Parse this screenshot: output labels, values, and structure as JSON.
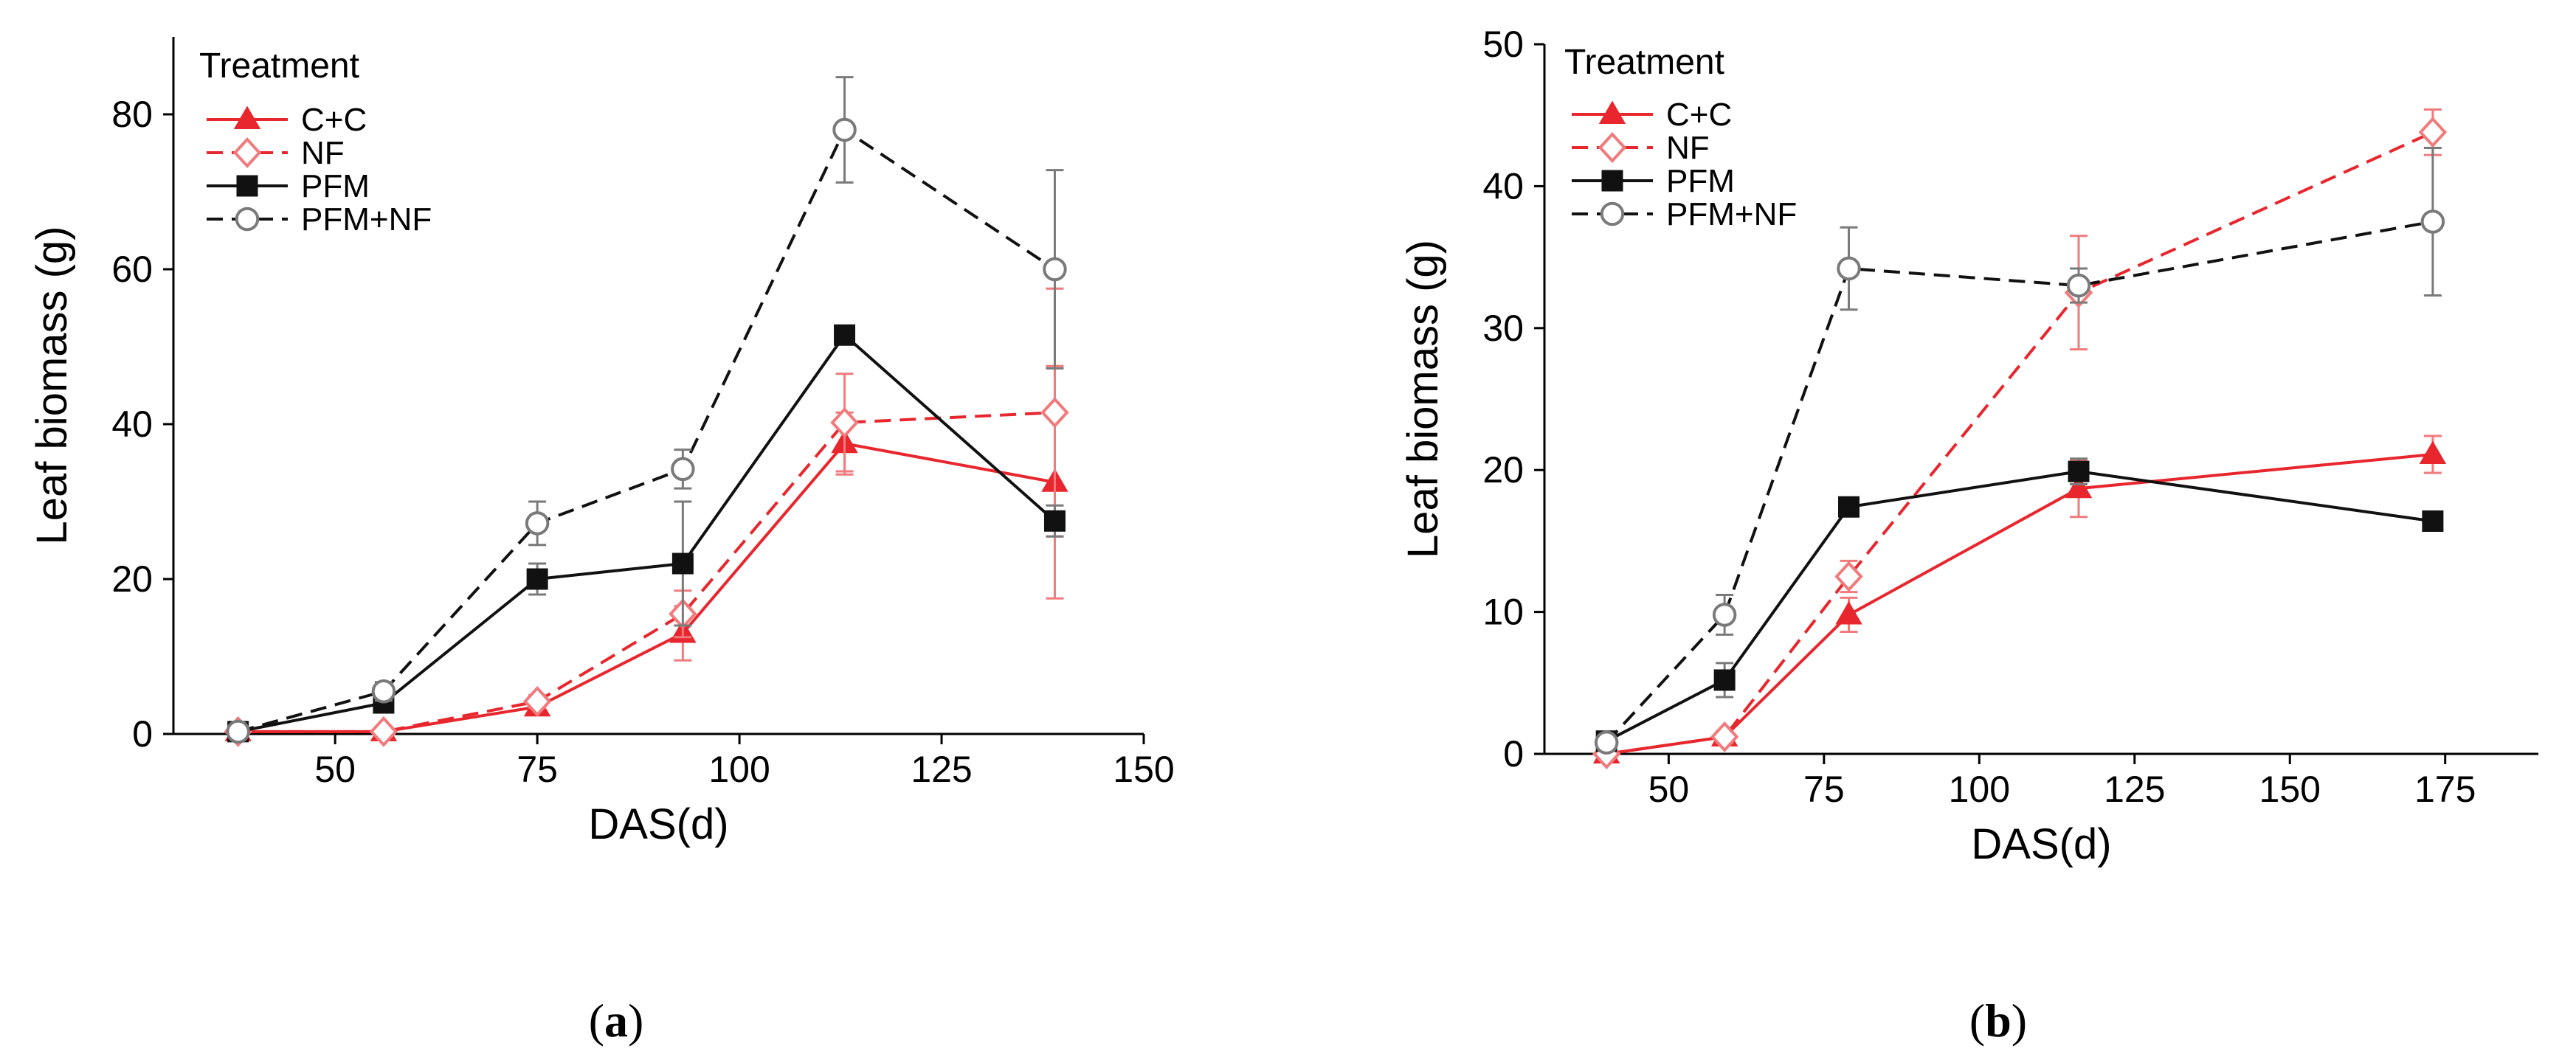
{
  "figure": {
    "panel_labels": [
      {
        "open": "(",
        "letter": "a",
        "close": ")"
      },
      {
        "open": "(",
        "letter": "b",
        "close": ")"
      }
    ]
  },
  "colors": {
    "red": "#e8262d",
    "black": "#111111",
    "pink": "#f07a7c",
    "grey": "#7a7a7a"
  },
  "chart_data": [
    {
      "type": "line",
      "panel": "a",
      "title": "",
      "xlabel": "DAS(d)",
      "ylabel": "Leaf biomass (g)",
      "xlim": [
        30,
        150
      ],
      "ylim": [
        0,
        90
      ],
      "xticks": [
        50,
        75,
        100,
        125,
        150
      ],
      "yticks": [
        0,
        20,
        40,
        60,
        80
      ],
      "legend": {
        "title": "Treatment",
        "position": "top-left"
      },
      "series": [
        {
          "name": "C+C",
          "color": "#e8262d",
          "dash": "solid",
          "marker": "triangle-filled",
          "x": [
            38,
            56,
            75,
            93,
            113,
            139
          ],
          "y": [
            0.3,
            0.3,
            3.5,
            13,
            37.5,
            32.5
          ],
          "err": [
            0.3,
            0.3,
            0.8,
            3.5,
            4,
            15
          ]
        },
        {
          "name": "NF",
          "color": "#e8262d",
          "dash": "dashed",
          "marker": "diamond-open",
          "x": [
            38,
            56,
            75,
            93,
            113,
            139
          ],
          "y": [
            0.3,
            0.3,
            4.2,
            15.5,
            40.2,
            41.5
          ],
          "err": [
            0.3,
            0.3,
            0.8,
            3,
            6.3,
            16
          ]
        },
        {
          "name": "PFM",
          "color": "#111111",
          "dash": "solid",
          "marker": "square-filled",
          "x": [
            38,
            56,
            75,
            93,
            113,
            139
          ],
          "y": [
            0.3,
            4,
            20,
            22,
            51.5,
            27.5
          ],
          "err": [
            0.3,
            0.8,
            2,
            8,
            1,
            2
          ]
        },
        {
          "name": "PFM+NF",
          "color": "#111111",
          "dash": "dashed",
          "marker": "circle-open",
          "x": [
            38,
            56,
            75,
            93,
            113,
            139
          ],
          "y": [
            0.3,
            5.5,
            27.2,
            34.2,
            78,
            60
          ],
          "err": [
            0.3,
            1.2,
            2.8,
            2.5,
            6.8,
            12.8
          ]
        }
      ]
    },
    {
      "type": "line",
      "panel": "b",
      "title": "",
      "xlabel": "DAS(d)",
      "ylabel": "Leaf biomass (g)",
      "xlim": [
        30,
        190
      ],
      "ylim": [
        0,
        50
      ],
      "xticks": [
        50,
        75,
        100,
        125,
        150,
        175
      ],
      "yticks": [
        0,
        10,
        20,
        30,
        40,
        50
      ],
      "legend": {
        "title": "Treatment",
        "position": "top-left"
      },
      "series": [
        {
          "name": "C+C",
          "color": "#e8262d",
          "dash": "solid",
          "marker": "triangle-filled",
          "x": [
            40,
            59,
            79,
            116,
            173
          ],
          "y": [
            0,
            1.2,
            9.8,
            18.7,
            21.1
          ],
          "err": [
            0.2,
            0.4,
            1.2,
            2,
            1.3
          ]
        },
        {
          "name": "NF",
          "color": "#e8262d",
          "dash": "dashed",
          "marker": "diamond-open",
          "x": [
            40,
            59,
            79,
            116,
            173
          ],
          "y": [
            0,
            1.2,
            12.5,
            32.5,
            43.8
          ],
          "err": [
            0.2,
            0.4,
            1.1,
            4,
            1.6
          ]
        },
        {
          "name": "PFM",
          "color": "#111111",
          "dash": "solid",
          "marker": "square-filled",
          "x": [
            40,
            59,
            79,
            116,
            173
          ],
          "y": [
            0.9,
            5.2,
            17.4,
            19.9,
            16.4
          ],
          "err": [
            0.3,
            1.2,
            0.3,
            0.9,
            0.3
          ]
        },
        {
          "name": "PFM+NF",
          "color": "#111111",
          "dash": "dashed",
          "marker": "circle-open",
          "x": [
            40,
            59,
            79,
            116,
            173
          ],
          "y": [
            0.8,
            9.8,
            34.2,
            33,
            37.5
          ],
          "err": [
            0.3,
            1.4,
            2.9,
            1.2,
            5.2
          ]
        }
      ]
    }
  ]
}
